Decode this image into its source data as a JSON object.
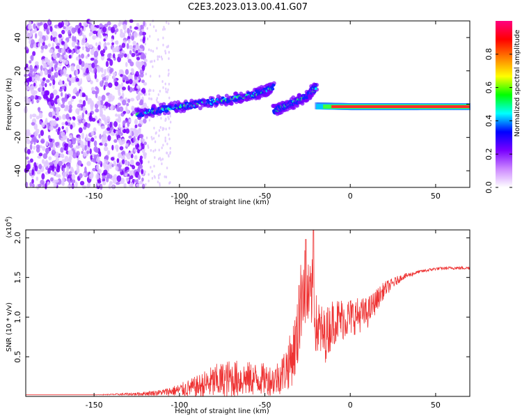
{
  "title": "C2E3.2023.013.00.41.G07",
  "chart_data": [
    {
      "type": "heatmap",
      "xlabel": "Height of straight line (km)",
      "ylabel": "Frequency (Hz)",
      "xlim": [
        -190,
        70
      ],
      "ylim": [
        -50,
        50
      ],
      "xticks": [
        -150,
        -100,
        -50,
        0,
        50
      ],
      "yticks": [
        -40,
        -20,
        0,
        20,
        40
      ],
      "colorbar": {
        "label": "Normalized spectral amplitude",
        "range": [
          0.0,
          1.0
        ],
        "ticks": [
          0.0,
          0.2,
          0.4,
          0.6,
          0.8
        ],
        "colors": [
          "#ffffff",
          "#cc88ff",
          "#7a00ff",
          "#0000ff",
          "#00ffff",
          "#00ff00",
          "#ffff00",
          "#ff8000",
          "#ff0000",
          "#ff0080"
        ]
      },
      "ridges": [
        {
          "x": [
            -125,
            -110,
            -90,
            -70,
            -55,
            -45
          ],
          "y": [
            -6,
            -3,
            0,
            3,
            6,
            10
          ]
        },
        {
          "x": [
            -45,
            -35,
            -25,
            -20
          ],
          "y": [
            -4,
            0,
            5,
            10
          ]
        },
        {
          "x": [
            -20,
            0,
            20,
            40,
            70
          ],
          "y": [
            -1,
            -1.5,
            -1.5,
            -1.5,
            -1.5
          ]
        }
      ]
    },
    {
      "type": "line",
      "xlabel": "Height of straight line (km)",
      "ylabel": "SNR (10 * v/v)",
      "ylabel_scale": "(x10",
      "ylabel_scale_exp": "4",
      "ylabel_scale_close": ")",
      "xlim": [
        -190,
        70
      ],
      "ylim": [
        0,
        2.1
      ],
      "xticks": [
        -150,
        -100,
        -50,
        0,
        50
      ],
      "yticks": [
        0.5,
        1.0,
        1.5,
        2.0
      ],
      "series": [
        {
          "color": "#ee3333",
          "x": [
            -190,
            -150,
            -125,
            -110,
            -100,
            -90,
            -80,
            -70,
            -60,
            -50,
            -45,
            -40,
            -35,
            -30,
            -28,
            -26,
            -24,
            -22,
            -20,
            -15,
            -10,
            0,
            10,
            20,
            30,
            40,
            50,
            60,
            70
          ],
          "y": [
            0.02,
            0.02,
            0.03,
            0.05,
            0.08,
            0.12,
            0.18,
            0.22,
            0.22,
            0.22,
            0.2,
            0.28,
            0.45,
            0.8,
            1.5,
            1.3,
            1.2,
            1.3,
            0.9,
            0.75,
            0.95,
            1.0,
            1.05,
            1.35,
            1.5,
            1.57,
            1.61,
            1.62,
            1.62
          ],
          "noise": [
            0.0,
            0.0,
            0.02,
            0.04,
            0.08,
            0.14,
            0.22,
            0.25,
            0.22,
            0.2,
            0.2,
            0.25,
            0.35,
            0.5,
            0.6,
            0.5,
            0.45,
            0.45,
            0.4,
            0.35,
            0.3,
            0.25,
            0.2,
            0.1,
            0.04,
            0.02,
            0.02,
            0.02,
            0.02
          ],
          "peaks": [
            {
              "x": -26,
              "y": 1.98
            },
            {
              "x": -21.5,
              "y": 2.1
            },
            {
              "x": -30,
              "y": 1.4
            }
          ]
        }
      ]
    }
  ]
}
